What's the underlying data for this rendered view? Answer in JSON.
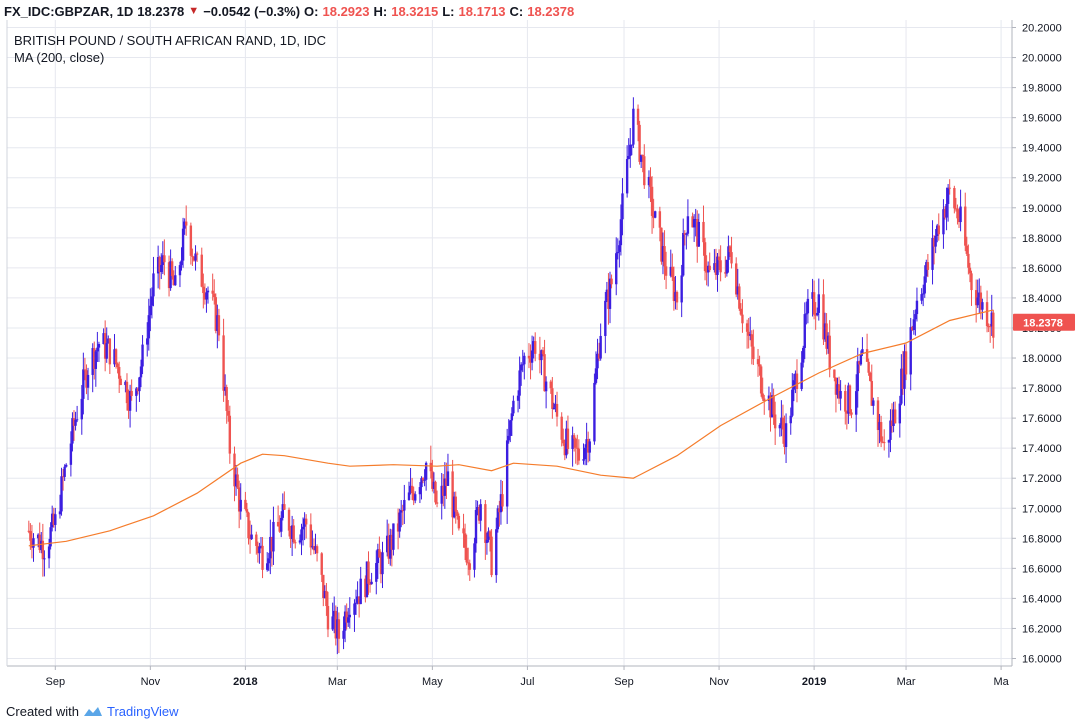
{
  "header": {
    "symbol": "FX_IDC:GBPZAR, 1D",
    "last": "18.2378",
    "change": "−0.0542 (−0.3%)",
    "o_label": "O:",
    "o_val": "18.2923",
    "h_label": "H:",
    "h_val": "18.3215",
    "l_label": "L:",
    "l_val": "18.1713",
    "c_label": "C:",
    "c_val": "18.2378"
  },
  "footer": {
    "created_with": "Created with",
    "brand": "TradingView",
    "logo_icon": "tradingview-logo-icon"
  },
  "colors": {
    "up": "#3b1ee0",
    "down": "#ef5350",
    "ma": "#f57c2b",
    "grid": "#e6e8ef",
    "price_tag": "#ef5350"
  },
  "chart_data": {
    "type": "candlestick",
    "title": "BRITISH POUND / SOUTH AFRICAN RAND, 1D, IDC",
    "indicator": "MA (200, close)",
    "ylim": [
      15.95,
      20.25
    ],
    "y_ticks": [
      "16.0000",
      "16.2000",
      "16.4000",
      "16.6000",
      "16.8000",
      "17.0000",
      "17.2000",
      "17.4000",
      "17.6000",
      "17.8000",
      "18.0000",
      "18.2000",
      "18.4000",
      "18.6000",
      "18.8000",
      "19.0000",
      "19.2000",
      "19.4000",
      "19.6000",
      "19.8000",
      "20.0000",
      "20.2000"
    ],
    "x_ticks": [
      "Sep",
      "Nov",
      "2018",
      "Mar",
      "May",
      "Jul",
      "Sep",
      "Nov",
      "2019",
      "Mar",
      "Ma"
    ],
    "last_price_label": "18.2378",
    "price_series": [
      [
        "2017-08-15",
        16.85
      ],
      [
        "2017-08-25",
        16.75
      ],
      [
        "2017-09-01",
        16.9
      ],
      [
        "2017-09-08",
        17.3
      ],
      [
        "2017-09-15",
        17.65
      ],
      [
        "2017-09-22",
        17.95
      ],
      [
        "2017-09-29",
        18.1
      ],
      [
        "2017-10-06",
        18.05
      ],
      [
        "2017-10-13",
        17.9
      ],
      [
        "2017-10-20",
        17.7
      ],
      [
        "2017-10-27",
        18.0
      ],
      [
        "2017-11-03",
        18.5
      ],
      [
        "2017-11-10",
        18.65
      ],
      [
        "2017-11-17",
        18.45
      ],
      [
        "2017-11-24",
        18.9
      ],
      [
        "2017-12-01",
        18.6
      ],
      [
        "2017-12-08",
        18.45
      ],
      [
        "2017-12-15",
        18.2
      ],
      [
        "2017-12-22",
        17.4
      ],
      [
        "2017-12-29",
        17.0
      ],
      [
        "2018-01-05",
        16.8
      ],
      [
        "2018-01-12",
        16.7
      ],
      [
        "2018-01-19",
        16.8
      ],
      [
        "2018-01-26",
        16.95
      ],
      [
        "2018-02-02",
        16.85
      ],
      [
        "2018-02-09",
        16.9
      ],
      [
        "2018-02-16",
        16.65
      ],
      [
        "2018-02-23",
        16.3
      ],
      [
        "2018-03-02",
        16.15
      ],
      [
        "2018-03-09",
        16.4
      ],
      [
        "2018-03-16",
        16.45
      ],
      [
        "2018-03-23",
        16.6
      ],
      [
        "2018-03-30",
        16.65
      ],
      [
        "2018-04-06",
        16.8
      ],
      [
        "2018-04-13",
        17.0
      ],
      [
        "2018-04-20",
        17.15
      ],
      [
        "2018-04-27",
        17.3
      ],
      [
        "2018-05-04",
        17.0
      ],
      [
        "2018-05-11",
        17.2
      ],
      [
        "2018-05-18",
        16.8
      ],
      [
        "2018-05-25",
        16.7
      ],
      [
        "2018-06-01",
        17.05
      ],
      [
        "2018-06-08",
        16.65
      ],
      [
        "2018-06-15",
        17.1
      ],
      [
        "2018-06-22",
        17.7
      ],
      [
        "2018-06-29",
        18.0
      ],
      [
        "2018-07-06",
        18.1
      ],
      [
        "2018-07-13",
        17.85
      ],
      [
        "2018-07-20",
        17.6
      ],
      [
        "2018-07-27",
        17.4
      ],
      [
        "2018-08-03",
        17.35
      ],
      [
        "2018-08-10",
        17.5
      ],
      [
        "2018-08-17",
        18.2
      ],
      [
        "2018-08-24",
        18.5
      ],
      [
        "2018-08-31",
        19.0
      ],
      [
        "2018-09-07",
        19.6
      ],
      [
        "2018-09-14",
        19.25
      ],
      [
        "2018-09-21",
        18.9
      ],
      [
        "2018-09-28",
        18.6
      ],
      [
        "2018-10-05",
        18.4
      ],
      [
        "2018-10-12",
        19.0
      ],
      [
        "2018-10-19",
        18.8
      ],
      [
        "2018-10-26",
        18.55
      ],
      [
        "2018-11-02",
        18.6
      ],
      [
        "2018-11-09",
        18.7
      ],
      [
        "2018-11-16",
        18.3
      ],
      [
        "2018-11-23",
        18.0
      ],
      [
        "2018-11-30",
        17.8
      ],
      [
        "2018-12-07",
        17.6
      ],
      [
        "2018-12-14",
        17.5
      ],
      [
        "2018-12-21",
        17.9
      ],
      [
        "2018-12-28",
        18.3
      ],
      [
        "2019-01-04",
        18.4
      ],
      [
        "2019-01-11",
        18.0
      ],
      [
        "2019-01-18",
        17.75
      ],
      [
        "2019-01-25",
        17.7
      ],
      [
        "2019-02-01",
        18.0
      ],
      [
        "2019-02-08",
        17.7
      ],
      [
        "2019-02-15",
        17.4
      ],
      [
        "2019-02-22",
        17.65
      ],
      [
        "2019-03-01",
        18.0
      ],
      [
        "2019-03-08",
        18.4
      ],
      [
        "2019-03-15",
        18.6
      ],
      [
        "2019-03-22",
        18.9
      ],
      [
        "2019-03-29",
        19.1
      ],
      [
        "2019-04-05",
        18.9
      ],
      [
        "2019-04-12",
        18.5
      ],
      [
        "2019-04-19",
        18.35
      ],
      [
        "2019-04-26",
        18.24
      ]
    ],
    "ma_series": [
      [
        "2017-08-15",
        16.75
      ],
      [
        "2017-09-08",
        16.78
      ],
      [
        "2017-10-06",
        16.85
      ],
      [
        "2017-11-03",
        16.95
      ],
      [
        "2017-12-01",
        17.1
      ],
      [
        "2017-12-29",
        17.3
      ],
      [
        "2018-01-12",
        17.36
      ],
      [
        "2018-01-26",
        17.35
      ],
      [
        "2018-02-23",
        17.3
      ],
      [
        "2018-03-09",
        17.28
      ],
      [
        "2018-04-06",
        17.29
      ],
      [
        "2018-05-04",
        17.28
      ],
      [
        "2018-05-18",
        17.29
      ],
      [
        "2018-06-08",
        17.25
      ],
      [
        "2018-06-22",
        17.3
      ],
      [
        "2018-07-20",
        17.28
      ],
      [
        "2018-08-17",
        17.22
      ],
      [
        "2018-09-07",
        17.2
      ],
      [
        "2018-10-05",
        17.35
      ],
      [
        "2018-11-02",
        17.55
      ],
      [
        "2018-12-07",
        17.75
      ],
      [
        "2019-01-04",
        17.9
      ],
      [
        "2019-02-01",
        18.03
      ],
      [
        "2019-03-01",
        18.1
      ],
      [
        "2019-03-29",
        18.25
      ],
      [
        "2019-04-26",
        18.32
      ]
    ]
  }
}
